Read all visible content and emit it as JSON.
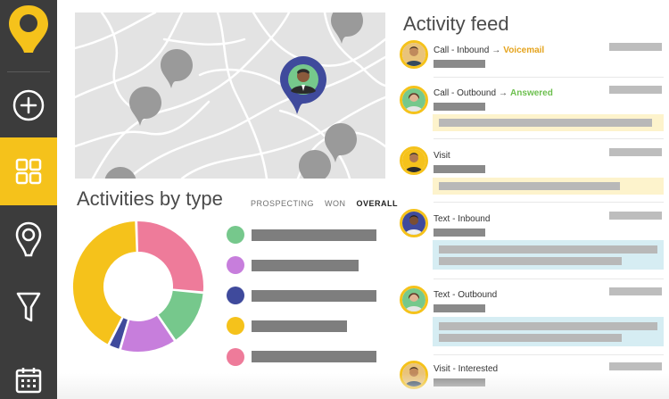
{
  "sidebar": {
    "logo": "map-pin-logo",
    "items": [
      {
        "icon": "plus-circle-icon",
        "active": false
      },
      {
        "icon": "grid-icon",
        "active": true
      },
      {
        "icon": "location-pin-icon",
        "active": false
      },
      {
        "icon": "funnel-icon",
        "active": false
      },
      {
        "icon": "calendar-icon",
        "active": false
      }
    ]
  },
  "colors": {
    "accent": "#f5c21b",
    "sidebar": "#3c3c3c",
    "map_bg": "#e3e3e3",
    "map_pin": "#9a9a9a",
    "map_pin_active": "#3f4a9c"
  },
  "activities": {
    "title": "Activities by type",
    "tabs": [
      "PROSPECTING",
      "WON",
      "OVERALL"
    ],
    "selected_tab": "OVERALL",
    "donut": [
      {
        "color": "#f5c21b",
        "fraction": 0.42
      },
      {
        "color": "#ee7b9a",
        "fraction": 0.27
      },
      {
        "color": "#76c88c",
        "fraction": 0.14
      },
      {
        "color": "#c77edc",
        "fraction": 0.14
      },
      {
        "color": "#3f4a9c",
        "fraction": 0.03
      }
    ],
    "legend": [
      {
        "color": "#76c88c"
      },
      {
        "color": "#c77edc"
      },
      {
        "color": "#3f4a9c"
      },
      {
        "color": "#f5c21b"
      },
      {
        "color": "#ee7b9a"
      }
    ]
  },
  "feed": {
    "title": "Activity feed",
    "items": [
      {
        "label": "Call - Inbound",
        "arrow": "→",
        "status": "Voicemail"
      },
      {
        "label": "Call - Outbound",
        "arrow": "→",
        "status": "Answered"
      },
      {
        "label": "Visit"
      },
      {
        "label": "Text - Inbound"
      },
      {
        "label": "Text - Outbound"
      },
      {
        "label": "Visit - Interested"
      }
    ]
  }
}
